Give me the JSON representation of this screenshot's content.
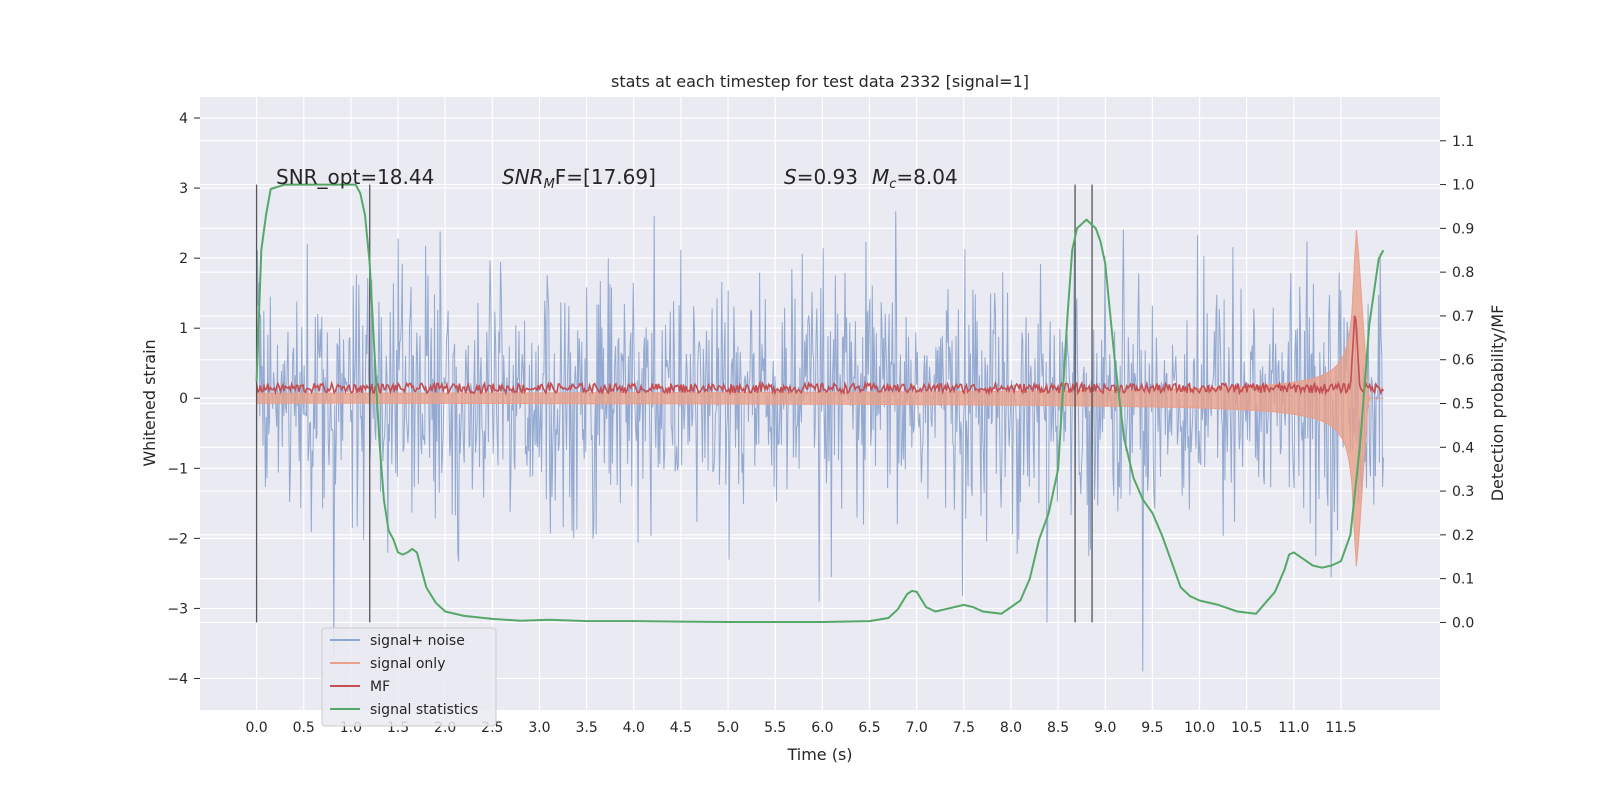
{
  "chart_data": {
    "type": "line",
    "title": "stats at each timestep for test data 2332 [signal=1]",
    "xlabel": "Time (s)",
    "ylabel": "Whitened strain",
    "ylabel_right": "Detection probability/MF",
    "xlim": [
      -0.6,
      12.55
    ],
    "ylim": [
      -4.45,
      4.3
    ],
    "ylim_right": [
      -0.2,
      1.2
    ],
    "x_ticks": [
      "0.0",
      "0.5",
      "1.0",
      "1.5",
      "2.0",
      "2.5",
      "3.0",
      "3.5",
      "4.0",
      "4.5",
      "5.0",
      "5.5",
      "6.0",
      "6.5",
      "7.0",
      "7.5",
      "8.0",
      "8.5",
      "9.0",
      "9.5",
      "10.0",
      "10.5",
      "11.0",
      "11.5"
    ],
    "y_ticks_left": [
      "−4",
      "−3",
      "−2",
      "−1",
      "0",
      "1",
      "2",
      "3",
      "4"
    ],
    "y_ticks_right": [
      "0.0",
      "0.1",
      "0.2",
      "0.3",
      "0.4",
      "0.5",
      "0.6",
      "0.7",
      "0.8",
      "0.9",
      "1.0",
      "1.1"
    ],
    "grid": true,
    "legend_position": "lower-left",
    "annotations": {
      "snr_opt": "SNR_opt=18.44",
      "snr_mf_prefix": "SNR",
      "snr_mf_sub": "M",
      "snr_mf_rest": "F=[17.69]",
      "s_label": "S",
      "s_value": "=0.93",
      "mc_label": "M",
      "mc_sub": "c",
      "mc_value": "=8.04"
    },
    "vertical_markers": [
      0.0,
      1.2,
      8.68,
      8.86
    ],
    "series": [
      {
        "name": "signal+ noise",
        "color": "#8ea5cf",
        "axis": "left",
        "description_values": "noise-like strain, amplitude roughly ±2 with spikes to ±4",
        "envelope": {
          "x_start": 0.0,
          "x_end": 11.95,
          "typical_amplitude": 1.25,
          "peak_amplitude": 3.9
        }
      },
      {
        "name": "signal only",
        "color": "#e8a08a",
        "axis": "left",
        "envelope": {
          "x_start": 0.0,
          "x_end": 11.95,
          "peak_time": 11.67,
          "peak_amplitude": 2.4
        }
      },
      {
        "name": "MF",
        "color": "#c44e52",
        "axis": "right",
        "baseline": 0.535,
        "peak_time": 11.65,
        "peak_value": 0.72
      },
      {
        "name": "signal statistics",
        "color": "#55a868",
        "axis": "right",
        "x": [
          0.0,
          0.05,
          0.1,
          0.15,
          0.3,
          0.5,
          0.7,
          0.9,
          1.0,
          1.05,
          1.1,
          1.15,
          1.2,
          1.25,
          1.3,
          1.35,
          1.4,
          1.45,
          1.5,
          1.55,
          1.6,
          1.65,
          1.7,
          1.75,
          1.8,
          1.9,
          2.0,
          2.2,
          2.5,
          2.8,
          3.1,
          3.5,
          4.0,
          4.5,
          5.0,
          5.5,
          6.0,
          6.5,
          6.7,
          6.8,
          6.9,
          6.95,
          7.0,
          7.1,
          7.2,
          7.3,
          7.5,
          7.6,
          7.7,
          7.9,
          8.1,
          8.2,
          8.3,
          8.4,
          8.5,
          8.6,
          8.65,
          8.7,
          8.8,
          8.9,
          8.95,
          9.0,
          9.1,
          9.2,
          9.3,
          9.4,
          9.5,
          9.6,
          9.7,
          9.8,
          9.9,
          10.0,
          10.2,
          10.4,
          10.6,
          10.8,
          10.9,
          10.95,
          11.0,
          11.1,
          11.2,
          11.3,
          11.4,
          11.5,
          11.6,
          11.7,
          11.8,
          11.9,
          11.95
        ],
        "y": [
          0.55,
          0.85,
          0.93,
          0.99,
          1.0,
          1.0,
          1.0,
          1.0,
          1.0,
          1.0,
          0.98,
          0.93,
          0.82,
          0.62,
          0.42,
          0.28,
          0.21,
          0.19,
          0.16,
          0.155,
          0.16,
          0.168,
          0.16,
          0.12,
          0.08,
          0.045,
          0.025,
          0.015,
          0.008,
          0.004,
          0.006,
          0.003,
          0.003,
          0.002,
          0.001,
          0.001,
          0.001,
          0.003,
          0.01,
          0.03,
          0.065,
          0.072,
          0.07,
          0.035,
          0.025,
          0.03,
          0.04,
          0.035,
          0.025,
          0.02,
          0.05,
          0.1,
          0.19,
          0.25,
          0.35,
          0.7,
          0.85,
          0.9,
          0.92,
          0.9,
          0.87,
          0.82,
          0.6,
          0.42,
          0.33,
          0.28,
          0.25,
          0.2,
          0.14,
          0.08,
          0.06,
          0.05,
          0.04,
          0.025,
          0.02,
          0.07,
          0.12,
          0.155,
          0.16,
          0.145,
          0.13,
          0.125,
          0.13,
          0.14,
          0.2,
          0.4,
          0.68,
          0.83,
          0.85
        ]
      }
    ]
  }
}
